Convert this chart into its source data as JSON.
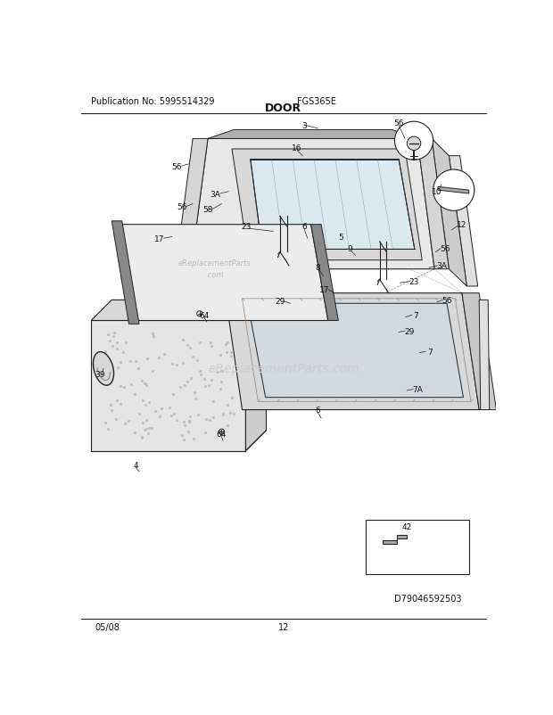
{
  "title": "DOOR",
  "pub_no": "Publication No: 5995514329",
  "model": "FGS365E",
  "date": "05/08",
  "page": "12",
  "diagram_id": "D79046592503",
  "bg_color": "#ffffff",
  "lc": "#222222",
  "watermark": "eReplacementParts.com"
}
